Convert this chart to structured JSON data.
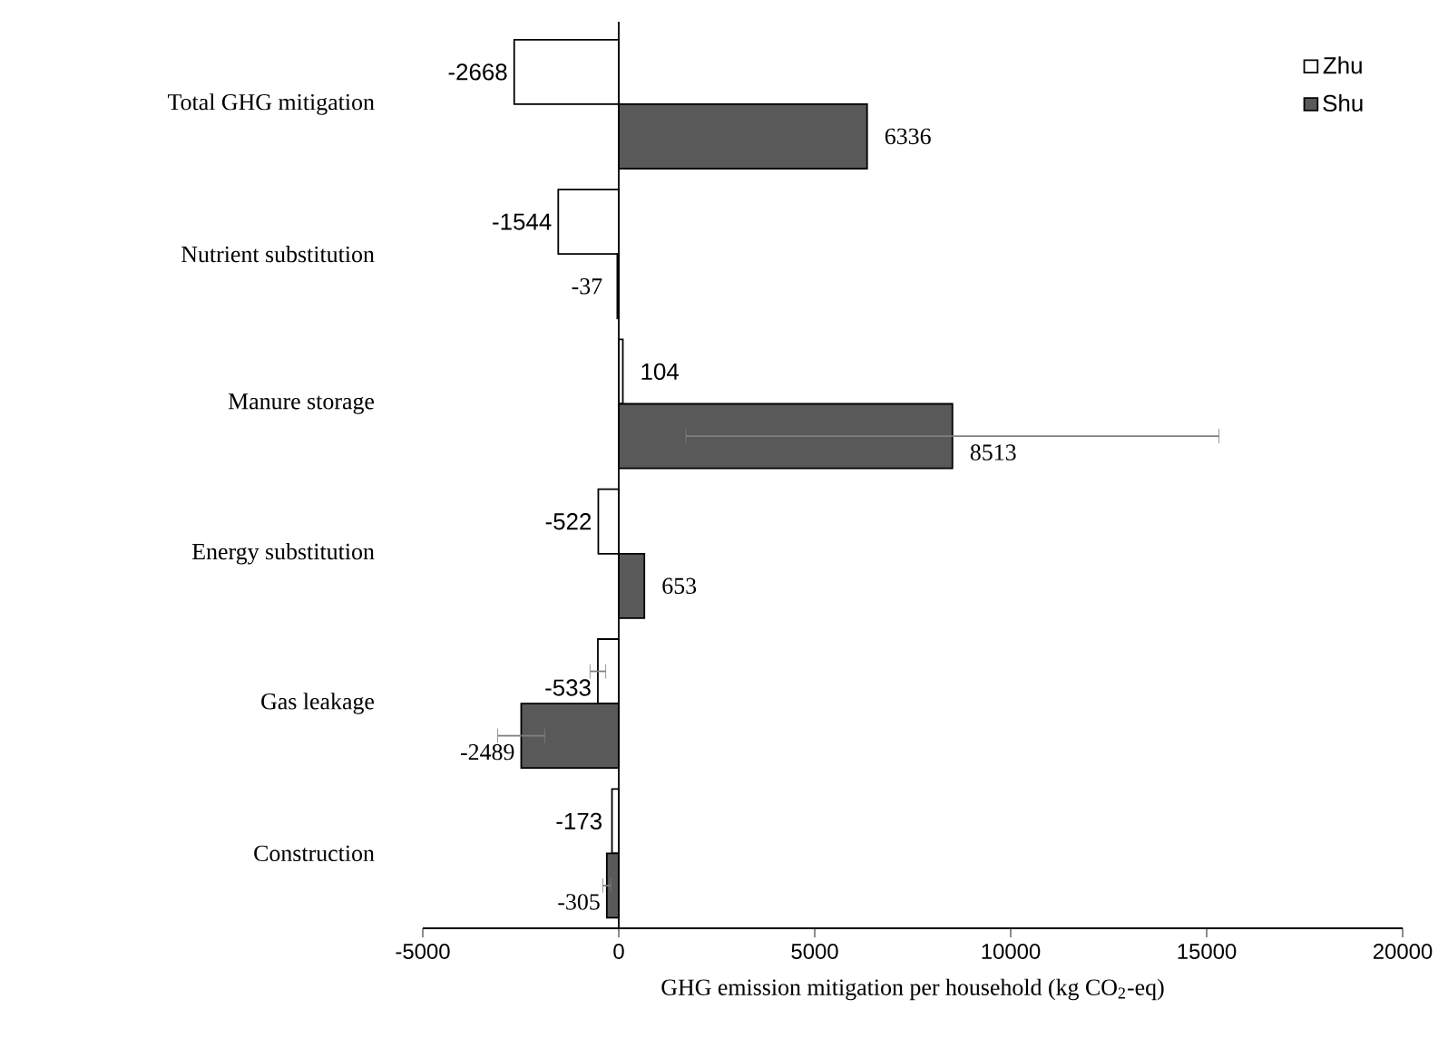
{
  "chart_data": {
    "type": "bar",
    "orientation": "horizontal",
    "xlabel": "GHG emission mitigation per household (kg CO$_{2}$-eq)",
    "categories": [
      "Total GHG mitigation",
      "Nutrient substitution",
      "Manure storage",
      "Energy substitution",
      "Gas leakage",
      "Construction"
    ],
    "series": [
      {
        "name": "Zhu",
        "color": "#ffffff",
        "values": [
          -2668,
          -1544,
          104,
          -522,
          -533,
          -173
        ],
        "errors": [
          null,
          null,
          null,
          null,
          200,
          null
        ]
      },
      {
        "name": "Shu",
        "color": "#595959",
        "values": [
          6336,
          -37,
          8513,
          653,
          -2489,
          -305
        ],
        "errors": [
          null,
          null,
          6800,
          null,
          600,
          100
        ]
      }
    ],
    "xlim": [
      -5000,
      20000
    ],
    "xticks": [
      -5000,
      0,
      5000,
      10000,
      15000,
      20000
    ],
    "data_labels": true,
    "legend": "top right",
    "grid": false,
    "ref_lines": [
      {
        "axis": "x",
        "value": 0,
        "color": "#000000"
      }
    ]
  }
}
